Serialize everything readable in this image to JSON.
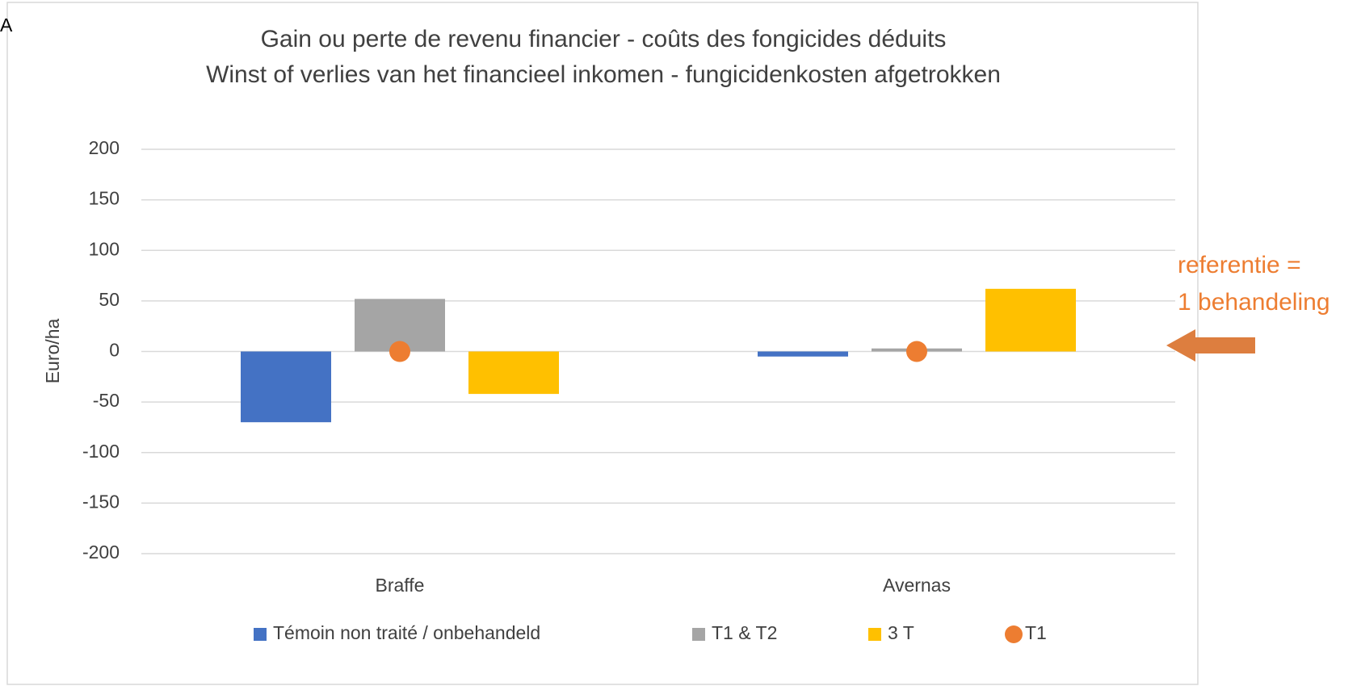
{
  "panel_label": "A",
  "chart_data": {
    "type": "bar",
    "title": [
      "Gain ou perte de revenu financier - coûts des fongicides déduits",
      "Winst of verlies van het financieel inkomen - fungicidenkosten afgetrokken"
    ],
    "y_label": "Euro/ha",
    "categories": [
      "Braffe",
      "Avernas"
    ],
    "series": [
      {
        "name": "Témoin non traité / onbehandeld",
        "type": "bar",
        "color": "#4472c4",
        "values": [
          -70,
          -5
        ]
      },
      {
        "name": "T1 & T2",
        "type": "bar",
        "color": "#a5a5a5",
        "values": [
          52,
          3
        ]
      },
      {
        "name": "3 T",
        "type": "bar",
        "color": "#ffc000",
        "values": [
          -42,
          62
        ]
      },
      {
        "name": "T1",
        "type": "dot",
        "color": "#ed7d31",
        "values": [
          0,
          0
        ]
      }
    ],
    "ylim": [
      -200,
      200
    ],
    "yticks": [
      -200,
      -150,
      -100,
      -50,
      0,
      50,
      100,
      150,
      200
    ],
    "grid": true,
    "legend": "bottom",
    "annotation": [
      "referentie =",
      "1 behandeling"
    ]
  }
}
